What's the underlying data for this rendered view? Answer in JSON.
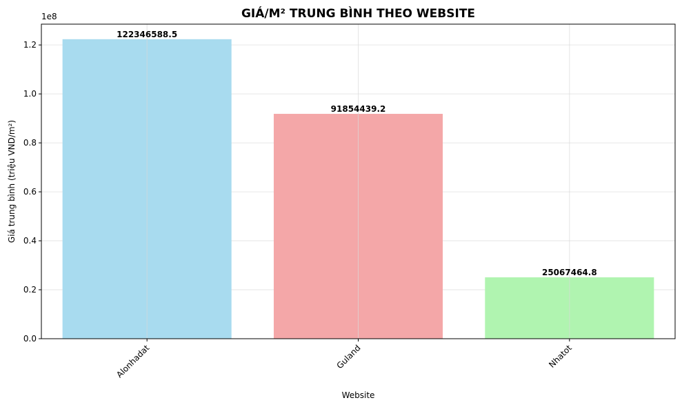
{
  "chart_data": {
    "type": "bar",
    "title": "GIÁ/M² TRUNG BÌNH THEO WEBSITE",
    "xlabel": "Website",
    "ylabel": "Giá trung bình (triệu VND/m²)",
    "y_offset_label": "1e8",
    "categories": [
      "Alonhadat",
      "Guland",
      "Nhatot"
    ],
    "values": [
      122346588.5,
      91854439.2,
      25067464.8
    ],
    "data_labels": [
      "122346588.5",
      "91854439.2",
      "25067464.8"
    ],
    "colors": [
      "#a8dbef",
      "#f4a7a8",
      "#b0f4b0"
    ],
    "ylim": [
      0,
      128500000
    ],
    "yticks": [
      0,
      20000000,
      40000000,
      60000000,
      80000000,
      100000000,
      120000000
    ],
    "ytick_labels": [
      "0.0",
      "0.2",
      "0.4",
      "0.6",
      "0.8",
      "1.0",
      "1.2"
    ],
    "grid": true,
    "xtick_rotation": 45
  }
}
